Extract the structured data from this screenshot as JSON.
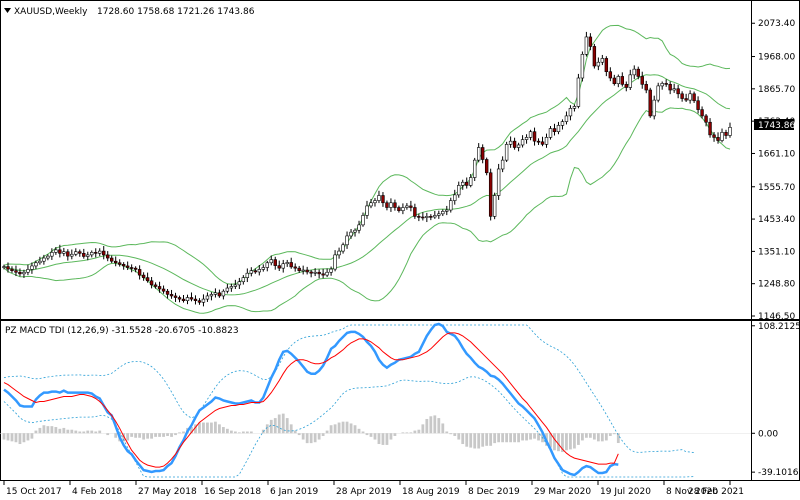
{
  "chart_data": [
    {
      "type": "candlestick",
      "symbol": "XAUUSD,Weekly",
      "ohlc_header": "1728.60 1758.68 1721.26 1743.86",
      "current_price": "1743.86",
      "y_ticks": [
        "2073.40",
        "1968.00",
        "1865.70",
        "1763.40",
        "1661.10",
        "1555.70",
        "1453.40",
        "1351.10",
        "1248.80",
        "1146.50"
      ],
      "ylim": [
        1146.5,
        2090
      ],
      "x_tick_labels": [
        "15 Oct 2017",
        "4 Feb 2018",
        "27 May 2018",
        "16 Sep 2018",
        "6 Jan 2019",
        "28 Apr 2019",
        "18 Aug 2019",
        "8 Dec 2019",
        "29 Mar 2020",
        "19 Jul 2020",
        "8 Nov 2020",
        "28 Feb 2021"
      ],
      "close": [
        1303,
        1295,
        1290,
        1285,
        1280,
        1285,
        1294,
        1305,
        1315,
        1320,
        1330,
        1336,
        1348,
        1356,
        1345,
        1350,
        1336,
        1342,
        1350,
        1345,
        1335,
        1340,
        1348,
        1345,
        1352,
        1340,
        1330,
        1320,
        1315,
        1310,
        1305,
        1300,
        1298,
        1294,
        1276,
        1268,
        1258,
        1245,
        1240,
        1232,
        1225,
        1215,
        1210,
        1205,
        1200,
        1195,
        1205,
        1200,
        1195,
        1190,
        1200,
        1210,
        1215,
        1220,
        1210,
        1225,
        1235,
        1240,
        1245,
        1255,
        1268,
        1282,
        1290,
        1286,
        1294,
        1300,
        1315,
        1325,
        1306,
        1298,
        1312,
        1316,
        1302,
        1298,
        1290,
        1292,
        1286,
        1282,
        1285,
        1280,
        1276,
        1285,
        1295,
        1340,
        1352,
        1372,
        1400,
        1412,
        1418,
        1435,
        1465,
        1495,
        1505,
        1512,
        1528,
        1505,
        1490,
        1505,
        1490,
        1480,
        1490,
        1495,
        1490,
        1462,
        1460,
        1458,
        1462,
        1460,
        1465,
        1470,
        1478,
        1482,
        1512,
        1530,
        1560,
        1570,
        1560,
        1585,
        1640,
        1680,
        1642,
        1600,
        1462,
        1528,
        1612,
        1640,
        1690,
        1700,
        1680,
        1688,
        1705,
        1712,
        1730,
        1700,
        1698,
        1690,
        1712,
        1740,
        1730,
        1750,
        1762,
        1780,
        1804,
        1810,
        1900,
        1975,
        2030,
        2000,
        1938,
        1950,
        1962,
        1920,
        1900,
        1882,
        1905,
        1880,
        1870,
        1910,
        1928,
        1905,
        1880,
        1862,
        1780,
        1830,
        1875,
        1883,
        1880,
        1862,
        1866,
        1850,
        1835,
        1830,
        1850,
        1828,
        1800,
        1780,
        1760,
        1720,
        1712,
        1702,
        1728,
        1718,
        1743.86
      ],
      "macd": [
        44,
        41,
        37,
        33,
        28,
        27,
        27,
        27,
        34,
        38,
        41,
        41,
        42,
        42,
        41,
        43,
        41,
        41,
        41,
        41,
        41,
        41,
        40,
        37,
        35,
        28,
        21,
        18,
        7,
        -4,
        -12,
        -18,
        -21,
        -27,
        -32,
        -37,
        -38,
        -39,
        -38,
        -38,
        -37,
        -33,
        -30,
        -23,
        -14,
        -7,
        2,
        8,
        16,
        23,
        26,
        29,
        32,
        36,
        35,
        33,
        32,
        31,
        30,
        30,
        31,
        32,
        33,
        31,
        31,
        36,
        46,
        56,
        64,
        74,
        82,
        83,
        80,
        76,
        72,
        67,
        62,
        60,
        60,
        63,
        68,
        76,
        85,
        88,
        93,
        97,
        101,
        102,
        102,
        100,
        97,
        92,
        88,
        82,
        74,
        69,
        66,
        69,
        71,
        74,
        75,
        76,
        77,
        80,
        82,
        90,
        98,
        104,
        109,
        110,
        108,
        102,
        100,
        98,
        93,
        86,
        80,
        76,
        71,
        67,
        65,
        62,
        58,
        57,
        54,
        50,
        45,
        40,
        35,
        30,
        27,
        23,
        19,
        15,
        8,
        1,
        -8,
        -16,
        -25,
        -31,
        -37,
        -39,
        -41,
        -42,
        -39,
        -35,
        -33,
        -34,
        -37,
        -40,
        -40,
        -39,
        -33,
        -31,
        -31.5528
      ],
      "signal": [
        51,
        49,
        46,
        43,
        40,
        37,
        35,
        33,
        31,
        32,
        32,
        33,
        34,
        35,
        36,
        37,
        37,
        37,
        38,
        39,
        39,
        38,
        37,
        35,
        32,
        28,
        23,
        18,
        12,
        5,
        -3,
        -10,
        -17,
        -22,
        -27,
        -30,
        -32,
        -33,
        -34,
        -34,
        -33,
        -30,
        -26,
        -21,
        -15,
        -9,
        -4,
        1,
        6,
        11,
        14,
        17,
        20,
        23,
        25,
        26,
        27,
        28,
        28,
        29,
        29,
        30,
        31,
        31,
        31,
        32,
        36,
        41,
        47,
        53,
        60,
        66,
        70,
        73,
        74,
        74,
        73,
        71,
        70,
        70,
        71,
        73,
        76,
        78,
        81,
        84,
        88,
        91,
        93,
        95,
        95,
        94,
        92,
        89,
        86,
        82,
        79,
        76,
        74,
        74,
        74,
        75,
        76,
        77,
        78,
        80,
        82,
        85,
        89,
        93,
        97,
        100,
        101,
        101,
        100,
        98,
        95,
        92,
        88,
        84,
        80,
        76,
        72,
        68,
        64,
        60,
        55,
        50,
        45,
        40,
        35,
        31,
        26,
        21,
        16,
        11,
        6,
        0,
        -6,
        -11,
        -16,
        -20,
        -23,
        -25,
        -26,
        -27,
        -28,
        -29,
        -30,
        -31,
        -31,
        -31,
        -30,
        -30,
        -20.6705
      ],
      "histogram_last": "-10.8823",
      "indicator_title": "PZ MACD TDI (12,26,9) -31.5528 -20.6705 -10.8823",
      "macd_ticks": [
        "108.2125",
        "0.00",
        "-39.1016"
      ],
      "macd_ylim": [
        -45,
        110
      ],
      "colors": {
        "up": "#ffffff",
        "down": "#8b0000",
        "outline": "#000000",
        "bands": "#5cb85c",
        "macd": "#3399ff",
        "signal": "#ff0000",
        "hist": "#c8c8c8",
        "dotted": "#2a9fd6"
      }
    }
  ]
}
